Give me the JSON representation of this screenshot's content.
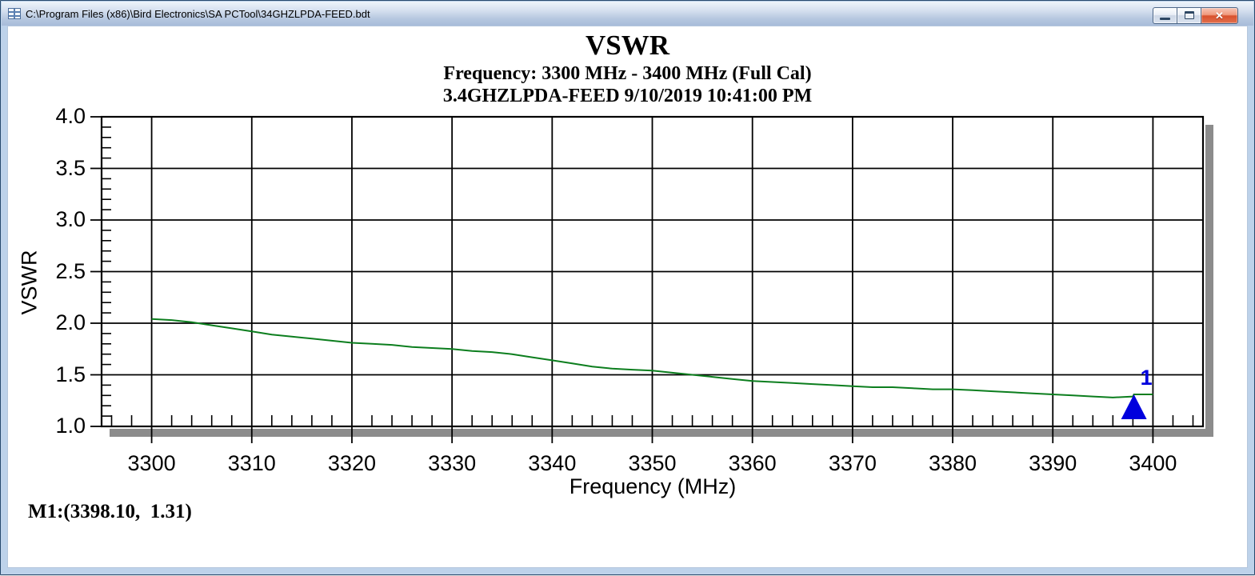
{
  "window": {
    "title": "C:\\Program Files (x86)\\Bird Electronics\\SA PCTool\\34GHZLPDA-FEED.bdt",
    "buttons": {
      "minimize": {
        "icon": "minimize-icon"
      },
      "maximize": {
        "icon": "maximize-icon"
      },
      "close": {
        "icon": "close-icon",
        "glyph": "✕"
      }
    }
  },
  "chart": {
    "title": "VSWR",
    "subtitle1": "Frequency: 3300 MHz - 3400 MHz (Full Cal)",
    "subtitle2": "3.4GHZLPDA-FEED 9/10/2019 10:41:00 PM",
    "marker_readout": "M1:(3398.10,  1.31)",
    "marker_number": "1"
  },
  "chart_data": {
    "type": "line",
    "title": "VSWR",
    "subtitle": "Frequency: 3300 MHz - 3400 MHz (Full Cal)",
    "session": "3.4GHZLPDA-FEED 9/10/2019 10:41:00 PM",
    "xlabel": "Frequency (MHz)",
    "ylabel": "VSWR",
    "xlim": [
      3295,
      3405
    ],
    "ylim": [
      1.0,
      4.0
    ],
    "grid": "major-both",
    "legend": "none",
    "x_major_ticks": [
      3300,
      3310,
      3320,
      3330,
      3340,
      3350,
      3360,
      3370,
      3380,
      3390,
      3400
    ],
    "x_tick_labels": [
      "3300",
      "3310",
      "3320",
      "3330",
      "3340",
      "3350",
      "3360",
      "3370",
      "3380",
      "3390",
      "3400"
    ],
    "x_minor_step": 2,
    "y_major_ticks": [
      4.0,
      3.5,
      3.0,
      2.5,
      2.0,
      1.5,
      1.0
    ],
    "y_tick_labels": [
      "4.0",
      "3.5",
      "3.0",
      "2.5",
      "2.0",
      "1.5",
      "1.0"
    ],
    "y_minor_step": 0.1,
    "colors": {
      "trace": "#0c7e1e",
      "marker": "#0000dd",
      "grid": "#000000",
      "shadow": "#8c8c8c"
    },
    "series": [
      {
        "name": "VSWR trace",
        "color": "#0c7e1e",
        "points": [
          [
            3300,
            2.04
          ],
          [
            3302,
            2.03
          ],
          [
            3304,
            2.01
          ],
          [
            3306,
            1.98
          ],
          [
            3308,
            1.95
          ],
          [
            3310,
            1.92
          ],
          [
            3312,
            1.89
          ],
          [
            3314,
            1.87
          ],
          [
            3316,
            1.85
          ],
          [
            3318,
            1.83
          ],
          [
            3320,
            1.81
          ],
          [
            3322,
            1.8
          ],
          [
            3324,
            1.79
          ],
          [
            3326,
            1.77
          ],
          [
            3328,
            1.76
          ],
          [
            3330,
            1.75
          ],
          [
            3332,
            1.73
          ],
          [
            3334,
            1.72
          ],
          [
            3336,
            1.7
          ],
          [
            3338,
            1.67
          ],
          [
            3340,
            1.64
          ],
          [
            3342,
            1.61
          ],
          [
            3344,
            1.58
          ],
          [
            3346,
            1.56
          ],
          [
            3348,
            1.55
          ],
          [
            3350,
            1.54
          ],
          [
            3352,
            1.52
          ],
          [
            3354,
            1.5
          ],
          [
            3356,
            1.48
          ],
          [
            3358,
            1.46
          ],
          [
            3360,
            1.44
          ],
          [
            3362,
            1.43
          ],
          [
            3364,
            1.42
          ],
          [
            3366,
            1.41
          ],
          [
            3368,
            1.4
          ],
          [
            3370,
            1.39
          ],
          [
            3372,
            1.38
          ],
          [
            3374,
            1.38
          ],
          [
            3376,
            1.37
          ],
          [
            3378,
            1.36
          ],
          [
            3380,
            1.36
          ],
          [
            3382,
            1.35
          ],
          [
            3384,
            1.34
          ],
          [
            3386,
            1.33
          ],
          [
            3388,
            1.32
          ],
          [
            3390,
            1.31
          ],
          [
            3392,
            1.3
          ],
          [
            3394,
            1.29
          ],
          [
            3396,
            1.28
          ],
          [
            3398,
            1.29
          ],
          [
            3398.1,
            1.31
          ],
          [
            3400,
            1.31
          ]
        ]
      }
    ],
    "marker": {
      "id": "1",
      "x": 3398.1,
      "y": 1.31,
      "readout": "M1:(3398.10,  1.31)",
      "color": "#0000dd"
    }
  }
}
